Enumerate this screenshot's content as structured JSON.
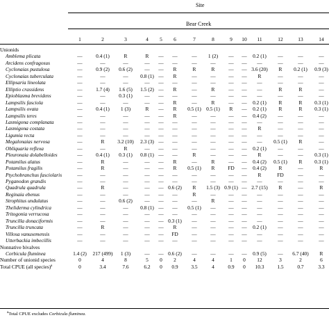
{
  "header": {
    "site_label": "Site",
    "creek_label": "Bear Creek"
  },
  "columns": [
    "1",
    "2",
    "3",
    "4",
    "5",
    "6",
    "7",
    "8",
    "9",
    "10",
    "11",
    "12",
    "13",
    "14"
  ],
  "sections": {
    "unionids": "Unionids",
    "nonnative": "Nonnative bivalves"
  },
  "unionid_rows": [
    {
      "name": "Amblema plicata",
      "values": [
        "—",
        "0.4 (1)",
        "R",
        "R",
        "—",
        "—",
        "—",
        "1 (2)",
        "—",
        "—",
        "0.2 (1)",
        "—",
        "—",
        "—"
      ]
    },
    {
      "name": "Arcidens confragosus",
      "values": [
        "—",
        "—",
        "—",
        "—",
        "—",
        "—",
        "—",
        "—",
        "—",
        "—",
        "—",
        "—",
        "—",
        "—"
      ]
    },
    {
      "name": "Cyclonaias pustulosa",
      "values": [
        "—",
        "0.9 (2)",
        "0.6 (2)",
        "—",
        "—",
        "R",
        "R",
        "R",
        "—",
        "—",
        "3.6 (20)",
        "R",
        "0.2 (1)",
        "0.9 (3)"
      ]
    },
    {
      "name": "Cyclonaias tuberculata",
      "values": [
        "—",
        "—",
        "—",
        "0.8 (1)",
        "—",
        "R",
        "—",
        "—",
        "—",
        "—",
        "R",
        "—",
        "—",
        "—"
      ]
    },
    {
      "name": "Ellipsaria lineolata",
      "values": [
        "—",
        "—",
        "—",
        "—",
        "—",
        "—",
        "—",
        "—",
        "—",
        "—",
        "—",
        "—",
        "—",
        "—"
      ]
    },
    {
      "name": "Elliptio crassidens",
      "values": [
        "—",
        "1.7 (4)",
        "1.6 (5)",
        "1.5 (2)",
        "—",
        "R",
        "—",
        "R",
        "—",
        "—",
        "—",
        "R",
        "R",
        "—"
      ]
    },
    {
      "name": "Epioblasma brevidens",
      "values": [
        "—",
        "—",
        "0.3 (1)",
        "—",
        "—",
        "—",
        "—",
        "—",
        "—",
        "—",
        "—",
        "—",
        "—",
        "—"
      ]
    },
    {
      "name": "Lampsilis fasciola",
      "values": [
        "—",
        "—",
        "—",
        "—",
        "—",
        "R",
        "—",
        "R",
        "—",
        "—",
        "0.2 (1)",
        "R",
        "R",
        "0.3 (1)"
      ]
    },
    {
      "name": "Lampsilis ovata",
      "values": [
        "—",
        "0.4 (1)",
        "1 (3)",
        "R",
        "—",
        "R",
        "0.5 (1)",
        "0.5 (1)",
        "R",
        "—",
        "0.2 (1)",
        "R",
        "R",
        "0.3 (1)"
      ]
    },
    {
      "name": "Lampsilis teres",
      "values": [
        "—",
        "—",
        "—",
        "—",
        "—",
        "R",
        "—",
        "—",
        "—",
        "—",
        "0.4 (2)",
        "—",
        "—",
        "—"
      ]
    },
    {
      "name": "Lasmigona complanata",
      "values": [
        "—",
        "—",
        "—",
        "—",
        "—",
        "—",
        "—",
        "—",
        "—",
        "—",
        "—",
        "—",
        "—",
        "—"
      ]
    },
    {
      "name": "Lasmigona costata",
      "values": [
        "—",
        "—",
        "—",
        "—",
        "—",
        "—",
        "—",
        "—",
        "—",
        "—",
        "R",
        "—",
        "—",
        "—"
      ]
    },
    {
      "name": "Ligumia recta",
      "values": [
        "—",
        "—",
        "—",
        "—",
        "—",
        "—",
        "—",
        "—",
        "—",
        "—",
        "—",
        "—",
        "—",
        "—"
      ]
    },
    {
      "name": "Megalonaias nervosa",
      "values": [
        "—",
        "R",
        "3.2 (10)",
        "2.3 (3)",
        "—",
        "—",
        "—",
        "—",
        "—",
        "—",
        "—",
        "0.5 (1)",
        "R",
        "—"
      ]
    },
    {
      "name": "Obliquaria reflexa",
      "values": [
        "—",
        "—",
        "R",
        "—",
        "—",
        "—",
        "—",
        "—",
        "—",
        "—",
        "0.2 (1)",
        "—",
        "—",
        "—"
      ]
    },
    {
      "name": "Pleuronaia dolabelloides",
      "values": [
        "—",
        "0.4 (1)",
        "0.3 (1)",
        "0.8 (1)",
        "—",
        "—",
        "R",
        "—",
        "—",
        "—",
        "R",
        "—",
        "—",
        "0.3 (1)"
      ]
    },
    {
      "name": "Potamilus alatus",
      "values": [
        "—",
        "R",
        "—",
        "—",
        "—",
        "R",
        "—",
        "R",
        "—",
        "—",
        "0.4 (2)",
        "0.5 (1)",
        "R",
        "0.3 (1)"
      ]
    },
    {
      "name": "Potamilus fragilis",
      "values": [
        "—",
        "R",
        "—",
        "—",
        "—",
        "R",
        "0.5 (1)",
        "R",
        "FD",
        "—",
        "0.4 (2)",
        "R",
        "—",
        "R"
      ]
    },
    {
      "name": "Ptychobranchus fasciolaris",
      "values": [
        "—",
        "—",
        "—",
        "—",
        "—",
        "—",
        "—",
        "—",
        "—",
        "—",
        "R",
        "FD",
        "—",
        "—"
      ]
    },
    {
      "name": "Pyganodon grandis",
      "values": [
        "—",
        "—",
        "—",
        "—",
        "—",
        "—",
        "—",
        "—",
        "—",
        "—",
        "—",
        "—",
        "—",
        "—"
      ]
    },
    {
      "name": "Quadrula quadrula",
      "values": [
        "—",
        "R",
        "—",
        "—",
        "—",
        "0.6 (2)",
        "R",
        "1.5 (3)",
        "0.9 (1)",
        "—",
        "2.7 (15)",
        "R",
        "—",
        "R"
      ]
    },
    {
      "name": "Reginaia ebenus",
      "values": [
        "—",
        "—",
        "—",
        "—",
        "—",
        "—",
        "R",
        "—",
        "—",
        "—",
        "—",
        "—",
        "—",
        "—"
      ]
    },
    {
      "name": "Strophitus undulatus",
      "values": [
        "—",
        "—",
        "0.6 (2)",
        "—",
        "—",
        "—",
        "—",
        "R",
        "—",
        "—",
        "—",
        "—",
        "—",
        "—"
      ]
    },
    {
      "name": "Theliderma cylindrica",
      "values": [
        "—",
        "—",
        "—",
        "0.8 (1)",
        "—",
        "—",
        "0.5 (1)",
        "—",
        "—",
        "—",
        "—",
        "—",
        "—",
        "—"
      ]
    },
    {
      "name": "Tritogonia verrucosa",
      "values": [
        "—",
        "—",
        "—",
        "—",
        "—",
        "—",
        "—",
        "—",
        "—",
        "—",
        "—",
        "—",
        "—",
        "—"
      ]
    },
    {
      "name": "Truncilla donaciformis",
      "values": [
        "—",
        "—",
        "—",
        "—",
        "—",
        "0.3 (1)",
        "—",
        "—",
        "—",
        "—",
        "—",
        "—",
        "—",
        "—"
      ]
    },
    {
      "name": "Truncilla truncata",
      "values": [
        "—",
        "R",
        "—",
        "—",
        "—",
        "R",
        "—",
        "—",
        "—",
        "—",
        "0.2 (1)",
        "—",
        "—",
        "—"
      ]
    },
    {
      "name": "Villosa vanuxemensis",
      "values": [
        "—",
        "—",
        "—",
        "—",
        "—",
        "FD",
        "—",
        "—",
        "—",
        "—",
        "—",
        "—",
        "—",
        "—"
      ]
    },
    {
      "name": "Utterbackia imbecillis",
      "values": [
        "—",
        "—",
        "—",
        "—",
        "—",
        "—",
        "—",
        "—",
        "—",
        "—",
        "—",
        "—",
        "—",
        "—"
      ]
    }
  ],
  "nonnative_rows": [
    {
      "name": "Corbicula fluminea",
      "values": [
        "1.4 (2)",
        "217 (499)",
        "1 (3)",
        "—",
        "—",
        "0.6 (2)",
        "—",
        "—",
        "—",
        "—",
        "0.9 (5)",
        "—",
        "6.7 (40)",
        "R"
      ]
    }
  ],
  "summary_rows": [
    {
      "label": "Number of unionid species",
      "values": [
        "0",
        "4",
        "8",
        "5",
        "0",
        "2",
        "4",
        "4",
        "1",
        "0",
        "12",
        "3",
        "2",
        "6"
      ]
    },
    {
      "label": "Total CPUE (all species)",
      "note_mark": "a",
      "values": [
        "0",
        "3.4",
        "7.6",
        "6.2",
        "0",
        "0.9",
        "3.5",
        "4",
        "0.9",
        "0",
        "10.3",
        "1.5",
        "0.7",
        "3.3"
      ]
    }
  ],
  "footnote": {
    "mark": "a",
    "text": "Total CPUE excludes",
    "species": "Corbicula fluminea",
    "end": "."
  }
}
